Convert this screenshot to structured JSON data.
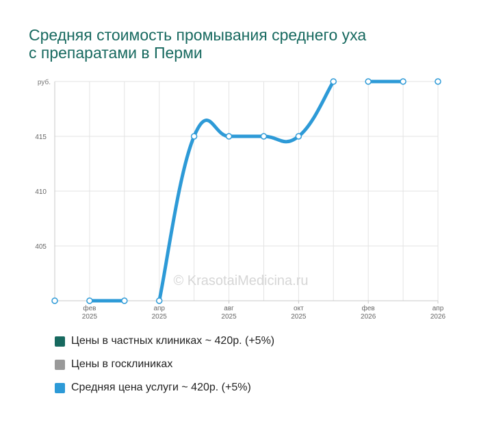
{
  "title_lines": [
    "Средняя стоимость промывания среднего уха",
    "с препаратами в Перми"
  ],
  "watermark": "© KrasotaiMedicina.ru",
  "chart_data": {
    "type": "line",
    "y_unit_label": "руб.",
    "ylim": [
      400,
      420
    ],
    "y_ticks": [
      405,
      410,
      415
    ],
    "x_count": 12,
    "x_labels": [
      {
        "index": 1,
        "month": "фев",
        "year": "2025"
      },
      {
        "index": 3,
        "month": "апр",
        "year": "2025"
      },
      {
        "index": 5,
        "month": "авг",
        "year": "2025"
      },
      {
        "index": 7,
        "month": "окт",
        "year": "2025"
      },
      {
        "index": 9,
        "month": "фев",
        "year": "2026"
      },
      {
        "index": 11,
        "month": "апр",
        "year": "2026"
      }
    ],
    "series": [
      {
        "name": "Средняя цена услуги ~ 420р. (+5%)",
        "color": "#2d9ad7",
        "points": [
          {
            "i": 0,
            "v": 400
          },
          {
            "i": 1,
            "v": 400
          },
          {
            "i": 2,
            "v": 400
          },
          {
            "i": 3,
            "v": 400
          },
          {
            "i": 4,
            "v": 415
          },
          {
            "i": 5,
            "v": 415
          },
          {
            "i": 6,
            "v": 415
          },
          {
            "i": 7,
            "v": 415
          },
          {
            "i": 8,
            "v": 420
          },
          {
            "i": 9,
            "v": 420
          },
          {
            "i": 10,
            "v": 420
          },
          {
            "i": 11,
            "v": 420
          }
        ],
        "line_segments": [
          [
            1,
            2
          ],
          [
            3,
            4,
            5,
            6,
            7,
            8
          ],
          [
            9,
            10
          ]
        ]
      }
    ],
    "grid": true
  },
  "legend": [
    {
      "label": "Цены в частных клиниках ~ 420р. (+5%)",
      "color": "#17695f"
    },
    {
      "label": "Цены в госклиниках",
      "color": "#999999"
    },
    {
      "label": "Средняя цена услуги ~ 420р. (+5%)",
      "color": "#2d9ad7"
    }
  ]
}
